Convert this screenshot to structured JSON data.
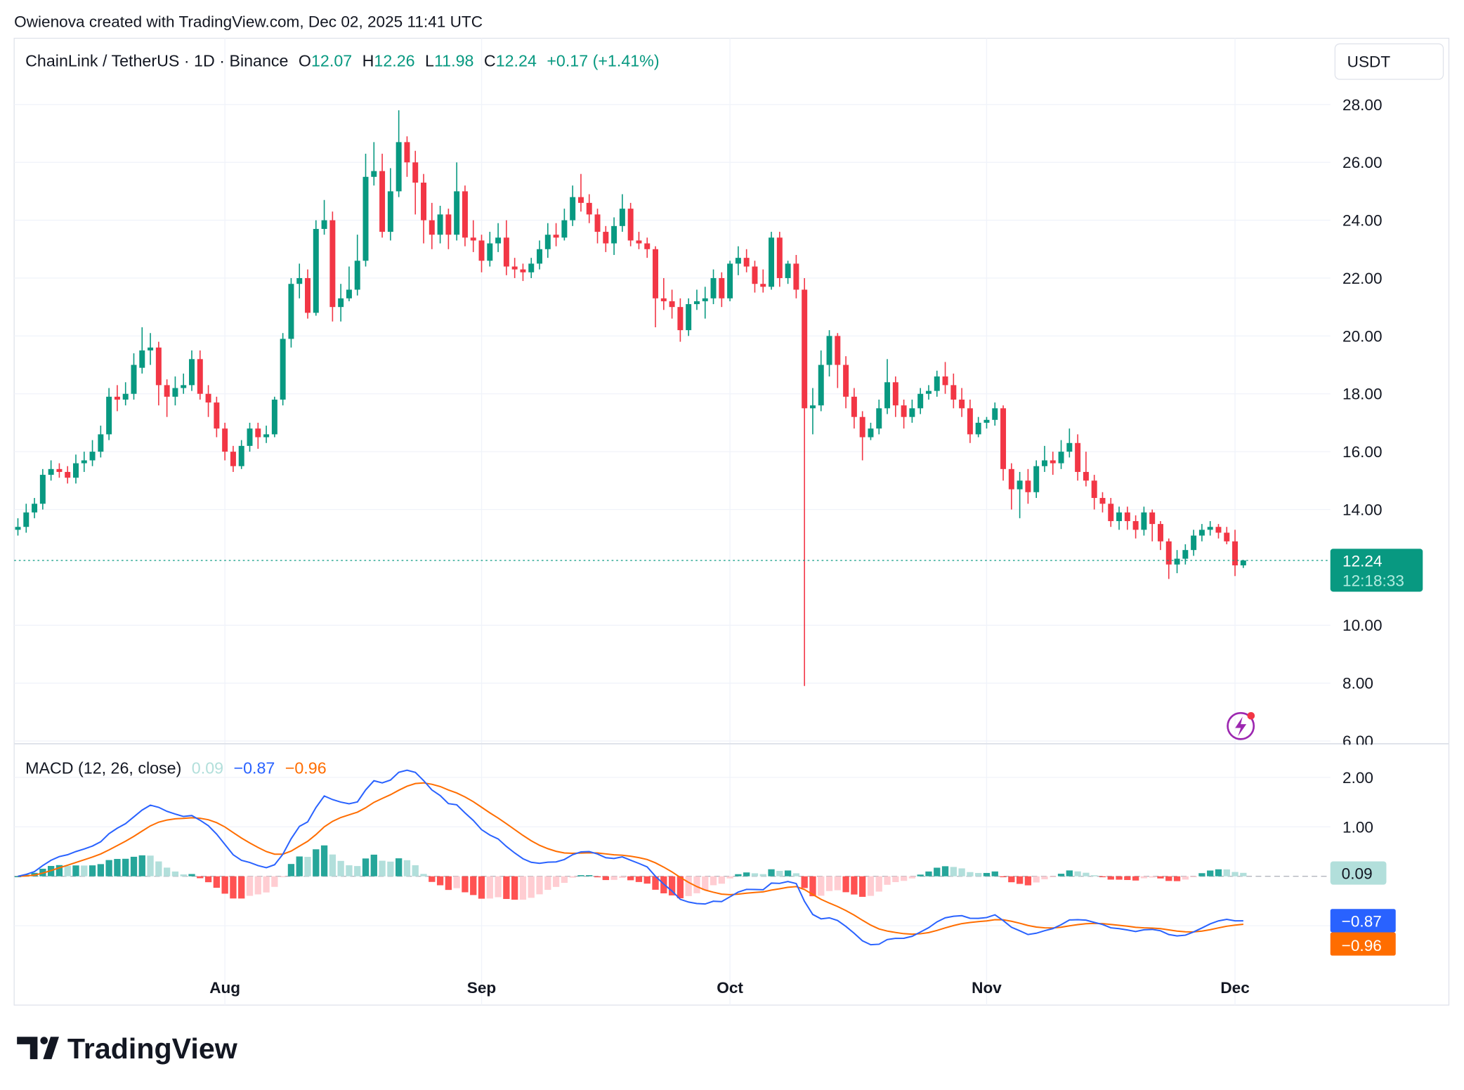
{
  "attribution": "Owienova created with TradingView.com, Dec 02, 2025 11:41 UTC",
  "legend": {
    "symbol": "ChainLink / TetherUS · 1D · Binance",
    "o_label": "O",
    "o": "12.07",
    "h_label": "H",
    "h": "12.26",
    "l_label": "L",
    "l": "11.98",
    "c_label": "C",
    "c": "12.24",
    "change": "+0.17 (+1.41%)"
  },
  "currency_button": "USDT",
  "price_label": {
    "value": "12.24",
    "countdown": "12:18:33"
  },
  "macd_legend": {
    "title": "MACD (12, 26, close)",
    "hist": "0.09",
    "macd": "−0.87",
    "signal": "−0.96"
  },
  "macd_labels": {
    "hist": "0.09",
    "macd": "−0.87",
    "signal": "−0.96"
  },
  "logo": "TradingView",
  "colors": {
    "up": "#089981",
    "down": "#f23645",
    "macd": "#2962ff",
    "signal": "#ff6d00",
    "hist_up_strong": "#26a69a",
    "hist_up_weak": "#b2dfdb",
    "hist_down_strong": "#ff5252",
    "hist_down_weak": "#ffcdd2"
  },
  "chart_data": [
    {
      "type": "candlestick",
      "title": "ChainLink / TetherUS · 1D · Binance",
      "y_ticks": [
        "28.00",
        "26.00",
        "24.00",
        "22.00",
        "20.00",
        "18.00",
        "16.00",
        "14.00",
        "10.00",
        "8.00",
        "6.00"
      ],
      "ylim": [
        6,
        28
      ],
      "x_ticks": [
        {
          "label": "Aug",
          "date": "08-01"
        },
        {
          "label": "Sep",
          "date": "09-01"
        },
        {
          "label": "Oct",
          "date": "10-01"
        },
        {
          "label": "Nov",
          "date": "11-01"
        },
        {
          "label": "Dec",
          "date": "12-01"
        }
      ],
      "grid": true,
      "candles_fields": [
        "date",
        "open",
        "high",
        "low",
        "close"
      ],
      "candles": [
        [
          "07-07",
          13.3,
          13.7,
          13.1,
          13.4
        ],
        [
          "07-08",
          13.4,
          14.2,
          13.2,
          13.9
        ],
        [
          "07-09",
          13.9,
          14.4,
          13.7,
          14.2
        ],
        [
          "07-10",
          14.2,
          15.4,
          14.0,
          15.2
        ],
        [
          "07-11",
          15.2,
          15.7,
          15.0,
          15.4
        ],
        [
          "07-12",
          15.4,
          15.6,
          15.1,
          15.3
        ],
        [
          "07-13",
          15.3,
          15.5,
          14.9,
          15.1
        ],
        [
          "07-14",
          15.1,
          15.9,
          14.9,
          15.6
        ],
        [
          "07-15",
          15.6,
          16.0,
          15.3,
          15.7
        ],
        [
          "07-16",
          15.7,
          16.4,
          15.5,
          16.0
        ],
        [
          "07-17",
          16.0,
          16.9,
          15.8,
          16.6
        ],
        [
          "07-18",
          16.6,
          18.2,
          16.4,
          17.9
        ],
        [
          "07-19",
          17.9,
          18.3,
          17.4,
          17.8
        ],
        [
          "07-20",
          17.8,
          18.4,
          17.6,
          18.0
        ],
        [
          "07-21",
          18.0,
          19.4,
          17.8,
          19.0
        ],
        [
          "07-22",
          18.9,
          20.3,
          18.7,
          19.5
        ],
        [
          "07-23",
          19.5,
          20.1,
          19.0,
          19.6
        ],
        [
          "07-24",
          19.6,
          19.8,
          17.6,
          18.3
        ],
        [
          "07-25",
          18.3,
          18.5,
          17.2,
          17.9
        ],
        [
          "07-26",
          17.9,
          18.6,
          17.6,
          18.2
        ],
        [
          "07-27",
          18.2,
          18.7,
          18.0,
          18.3
        ],
        [
          "07-28",
          18.3,
          19.5,
          18.1,
          19.2
        ],
        [
          "07-29",
          19.2,
          19.5,
          17.8,
          18.0
        ],
        [
          "07-30",
          18.0,
          18.3,
          17.2,
          17.7
        ],
        [
          "07-31",
          17.7,
          17.9,
          16.5,
          16.8
        ],
        [
          "08-01",
          16.8,
          17.0,
          15.7,
          16.0
        ],
        [
          "08-02",
          16.0,
          16.2,
          15.3,
          15.5
        ],
        [
          "08-03",
          15.5,
          16.4,
          15.4,
          16.2
        ],
        [
          "08-04",
          16.2,
          17.0,
          16.0,
          16.8
        ],
        [
          "08-05",
          16.8,
          17.0,
          16.1,
          16.5
        ],
        [
          "08-06",
          16.5,
          16.9,
          16.3,
          16.6
        ],
        [
          "08-07",
          16.6,
          17.9,
          16.5,
          17.8
        ],
        [
          "08-08",
          17.8,
          20.1,
          17.6,
          19.9
        ],
        [
          "08-09",
          19.9,
          22.0,
          19.6,
          21.8
        ],
        [
          "08-10",
          21.8,
          22.5,
          21.3,
          22.0
        ],
        [
          "08-11",
          22.0,
          22.3,
          20.6,
          20.8
        ],
        [
          "08-12",
          20.8,
          24.0,
          20.7,
          23.7
        ],
        [
          "08-13",
          23.7,
          24.7,
          23.5,
          24.0
        ],
        [
          "08-14",
          24.0,
          24.3,
          20.5,
          21.0
        ],
        [
          "08-15",
          21.0,
          21.8,
          20.5,
          21.3
        ],
        [
          "08-16",
          21.3,
          22.4,
          21.2,
          21.6
        ],
        [
          "08-17",
          21.6,
          23.5,
          21.4,
          22.6
        ],
        [
          "08-18",
          22.6,
          26.3,
          22.4,
          25.5
        ],
        [
          "08-19",
          25.5,
          26.7,
          25.2,
          25.7
        ],
        [
          "08-20",
          25.7,
          26.3,
          23.4,
          23.6
        ],
        [
          "08-21",
          23.6,
          25.8,
          23.3,
          25.0
        ],
        [
          "08-22",
          25.0,
          27.8,
          24.8,
          26.7
        ],
        [
          "08-23",
          26.7,
          26.9,
          25.5,
          26.0
        ],
        [
          "08-24",
          26.0,
          26.4,
          24.2,
          25.3
        ],
        [
          "08-25",
          25.3,
          25.6,
          23.2,
          24.0
        ],
        [
          "08-26",
          24.0,
          24.6,
          23.0,
          23.5
        ],
        [
          "08-27",
          23.5,
          24.5,
          23.2,
          24.2
        ],
        [
          "08-28",
          24.2,
          24.4,
          23.0,
          23.5
        ],
        [
          "08-29",
          23.5,
          26.0,
          23.3,
          25.0
        ],
        [
          "08-30",
          25.0,
          25.2,
          23.1,
          23.4
        ],
        [
          "08-31",
          23.4,
          24.0,
          22.9,
          23.3
        ],
        [
          "09-01",
          23.3,
          23.5,
          22.2,
          22.6
        ],
        [
          "09-02",
          22.6,
          23.6,
          22.4,
          23.2
        ],
        [
          "09-03",
          23.2,
          23.9,
          22.9,
          23.4
        ],
        [
          "09-04",
          23.4,
          24.0,
          22.1,
          22.4
        ],
        [
          "09-05",
          22.4,
          22.7,
          22.0,
          22.3
        ],
        [
          "09-06",
          22.3,
          22.5,
          21.9,
          22.2
        ],
        [
          "09-07",
          22.2,
          22.7,
          22.0,
          22.5
        ],
        [
          "09-08",
          22.5,
          23.3,
          22.3,
          23.0
        ],
        [
          "09-09",
          23.0,
          23.9,
          22.7,
          23.5
        ],
        [
          "09-10",
          23.5,
          23.9,
          23.1,
          23.4
        ],
        [
          "09-11",
          23.4,
          24.4,
          23.3,
          24.0
        ],
        [
          "09-12",
          24.0,
          25.2,
          23.8,
          24.8
        ],
        [
          "09-13",
          24.8,
          25.6,
          24.3,
          24.6
        ],
        [
          "09-14",
          24.6,
          24.9,
          23.9,
          24.2
        ],
        [
          "09-15",
          24.2,
          24.4,
          23.2,
          23.6
        ],
        [
          "09-16",
          23.6,
          23.8,
          22.9,
          23.2
        ],
        [
          "09-17",
          23.2,
          24.1,
          22.8,
          23.8
        ],
        [
          "09-18",
          23.8,
          24.9,
          23.6,
          24.4
        ],
        [
          "09-19",
          24.4,
          24.6,
          23.1,
          23.3
        ],
        [
          "09-20",
          23.3,
          23.6,
          23.0,
          23.2
        ],
        [
          "09-21",
          23.2,
          23.4,
          22.7,
          23.0
        ],
        [
          "09-22",
          23.0,
          23.1,
          20.3,
          21.3
        ],
        [
          "09-23",
          21.3,
          22.0,
          20.9,
          21.2
        ],
        [
          "09-24",
          21.2,
          21.6,
          20.6,
          21.0
        ],
        [
          "09-25",
          21.0,
          21.3,
          19.8,
          20.2
        ],
        [
          "09-26",
          20.2,
          21.3,
          20.0,
          21.1
        ],
        [
          "09-27",
          21.1,
          21.6,
          20.9,
          21.2
        ],
        [
          "09-28",
          21.2,
          21.7,
          20.6,
          21.3
        ],
        [
          "09-29",
          21.3,
          22.3,
          21.1,
          22.0
        ],
        [
          "09-30",
          22.0,
          22.2,
          21.0,
          21.3
        ],
        [
          "10-01",
          21.3,
          22.6,
          21.2,
          22.5
        ],
        [
          "10-02",
          22.5,
          23.1,
          22.1,
          22.7
        ],
        [
          "10-03",
          22.7,
          23.0,
          22.2,
          22.4
        ],
        [
          "10-04",
          22.4,
          22.6,
          21.5,
          21.8
        ],
        [
          "10-05",
          21.8,
          22.3,
          21.5,
          21.7
        ],
        [
          "10-06",
          21.7,
          23.6,
          21.6,
          23.4
        ],
        [
          "10-07",
          23.4,
          23.6,
          21.7,
          22.0
        ],
        [
          "10-08",
          22.0,
          22.6,
          21.8,
          22.5
        ],
        [
          "10-09",
          22.5,
          22.8,
          21.3,
          21.6
        ],
        [
          "10-10",
          21.6,
          22.0,
          7.9,
          17.5
        ],
        [
          "10-11",
          17.5,
          18.2,
          16.6,
          17.6
        ],
        [
          "10-12",
          17.6,
          19.5,
          17.4,
          19.0
        ],
        [
          "10-13",
          19.0,
          20.2,
          18.6,
          20.0
        ],
        [
          "10-14",
          20.0,
          20.1,
          18.2,
          19.0
        ],
        [
          "10-15",
          19.0,
          19.3,
          17.5,
          17.9
        ],
        [
          "10-16",
          17.9,
          18.2,
          16.8,
          17.2
        ],
        [
          "10-17",
          17.2,
          17.4,
          15.7,
          16.5
        ],
        [
          "10-18",
          16.5,
          17.0,
          16.4,
          16.8
        ],
        [
          "10-19",
          16.8,
          17.8,
          16.6,
          17.5
        ],
        [
          "10-20",
          17.5,
          19.2,
          17.3,
          18.4
        ],
        [
          "10-21",
          18.4,
          18.6,
          17.2,
          17.6
        ],
        [
          "10-22",
          17.6,
          17.8,
          16.8,
          17.2
        ],
        [
          "10-23",
          17.2,
          17.8,
          17.0,
          17.5
        ],
        [
          "10-24",
          17.5,
          18.2,
          17.3,
          18.0
        ],
        [
          "10-25",
          18.0,
          18.3,
          17.8,
          18.1
        ],
        [
          "10-26",
          18.1,
          18.8,
          17.9,
          18.6
        ],
        [
          "10-27",
          18.6,
          19.1,
          18.0,
          18.3
        ],
        [
          "10-28",
          18.3,
          18.7,
          17.5,
          17.8
        ],
        [
          "10-29",
          17.8,
          18.2,
          17.2,
          17.5
        ],
        [
          "10-30",
          17.5,
          17.8,
          16.3,
          16.6
        ],
        [
          "10-31",
          16.6,
          17.2,
          16.5,
          17.0
        ],
        [
          "11-01",
          17.0,
          17.2,
          16.8,
          17.1
        ],
        [
          "11-02",
          17.1,
          17.7,
          16.9,
          17.5
        ],
        [
          "11-03",
          17.5,
          17.6,
          15.0,
          15.4
        ],
        [
          "11-04",
          15.4,
          15.6,
          14.0,
          14.7
        ],
        [
          "11-05",
          14.7,
          15.3,
          13.7,
          15.0
        ],
        [
          "11-06",
          15.0,
          15.4,
          14.2,
          14.6
        ],
        [
          "11-07",
          14.6,
          15.7,
          14.4,
          15.5
        ],
        [
          "11-08",
          15.5,
          16.2,
          15.3,
          15.7
        ],
        [
          "11-09",
          15.7,
          16.0,
          15.2,
          15.6
        ],
        [
          "11-10",
          15.6,
          16.4,
          15.4,
          16.0
        ],
        [
          "11-11",
          16.0,
          16.8,
          15.8,
          16.3
        ],
        [
          "11-12",
          16.3,
          16.6,
          15.0,
          15.3
        ],
        [
          "11-13",
          15.3,
          16.0,
          14.8,
          15.0
        ],
        [
          "11-14",
          15.0,
          15.2,
          14.0,
          14.4
        ],
        [
          "11-15",
          14.4,
          14.6,
          13.9,
          14.2
        ],
        [
          "11-16",
          14.2,
          14.4,
          13.4,
          13.6
        ],
        [
          "11-17",
          13.6,
          14.1,
          13.3,
          13.9
        ],
        [
          "11-18",
          13.9,
          14.1,
          13.3,
          13.6
        ],
        [
          "11-19",
          13.6,
          13.8,
          13.0,
          13.3
        ],
        [
          "11-20",
          13.3,
          14.1,
          13.1,
          13.9
        ],
        [
          "11-21",
          13.9,
          14.0,
          12.9,
          13.5
        ],
        [
          "11-22",
          13.5,
          13.6,
          12.6,
          12.9
        ],
        [
          "11-23",
          12.9,
          13.0,
          11.6,
          12.1
        ],
        [
          "11-24",
          12.1,
          12.6,
          11.8,
          12.3
        ],
        [
          "11-25",
          12.3,
          12.8,
          12.1,
          12.6
        ],
        [
          "11-26",
          12.6,
          13.3,
          12.4,
          13.1
        ],
        [
          "11-27",
          13.1,
          13.5,
          12.9,
          13.3
        ],
        [
          "11-28",
          13.3,
          13.6,
          13.1,
          13.4
        ],
        [
          "11-29",
          13.4,
          13.5,
          13.0,
          13.2
        ],
        [
          "11-30",
          13.2,
          13.4,
          12.8,
          12.9
        ],
        [
          "12-01",
          12.9,
          13.3,
          11.7,
          12.07
        ],
        [
          "12-02",
          12.07,
          12.26,
          11.98,
          12.24
        ]
      ],
      "last_price": 12.24
    },
    {
      "type": "macd",
      "title": "MACD (12, 26, close)",
      "params": {
        "fast": 12,
        "slow": 26,
        "signal": 9,
        "source": "close"
      },
      "y_ticks": [
        "2.00",
        "1.00"
      ],
      "last_values": {
        "histogram": 0.09,
        "macd": -0.87,
        "signal": -0.96
      }
    }
  ]
}
